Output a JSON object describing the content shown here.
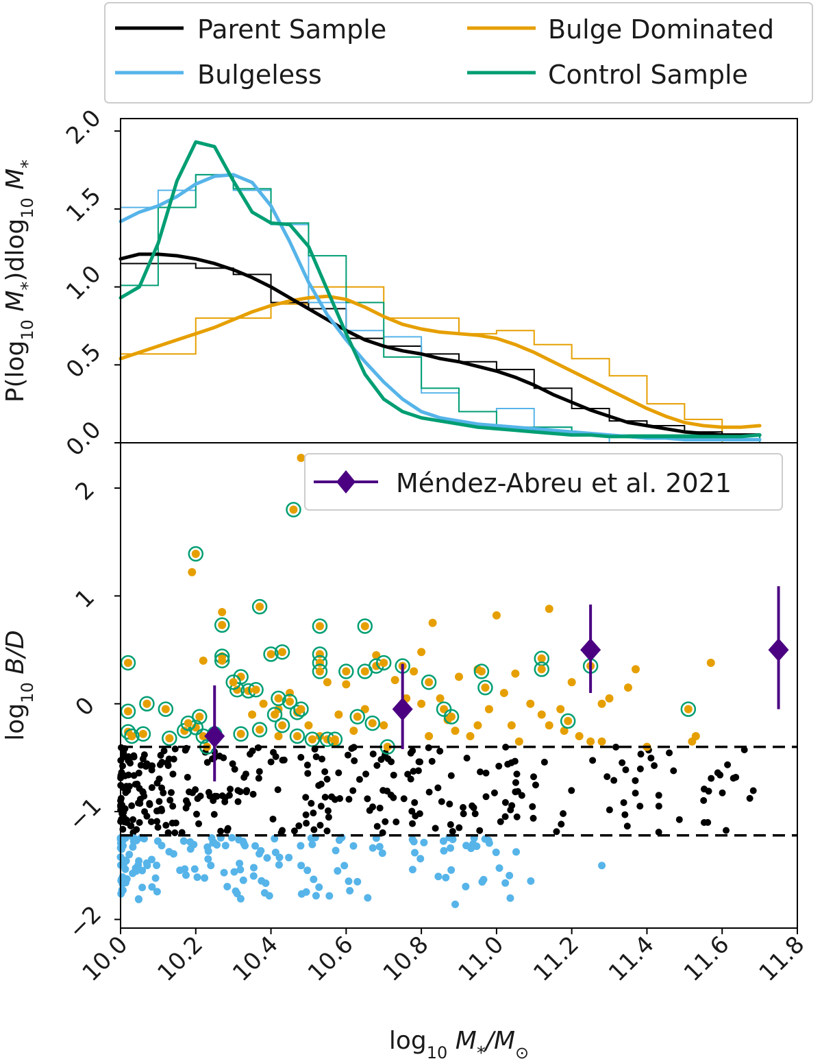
{
  "colors": {
    "parent": "#000000",
    "bulgeless": "#56b4e9",
    "bulge": "#e69f00",
    "control": "#009e73",
    "mendez": "#4b0082"
  },
  "chart_data": [
    {
      "type": "line",
      "panel": "top",
      "ylabel_parts": [
        "P(log",
        "10",
        " M",
        "*",
        ")dlog",
        "10",
        " M",
        "*"
      ],
      "xlim": [
        10.0,
        11.8
      ],
      "ylim": [
        0.0,
        2.08
      ],
      "yticks": [
        0.0,
        0.5,
        1.0,
        1.5,
        2.0
      ],
      "ytick_labels": [
        "0.0",
        "0.5",
        "1.0",
        "1.5",
        "2.0"
      ],
      "legend": {
        "position": "above",
        "entries": [
          "Parent Sample",
          "Bulge Dominated",
          "Bulgeless",
          "Control Sample"
        ]
      },
      "hist_edges": [
        10.0,
        10.1,
        10.2,
        10.3,
        10.4,
        10.5,
        10.6,
        10.7,
        10.8,
        10.9,
        11.0,
        11.1,
        11.2,
        11.3,
        11.4,
        11.5,
        11.6,
        11.7
      ],
      "series": [
        {
          "name": "Parent Sample",
          "color_key": "parent",
          "hist": [
            1.15,
            1.15,
            1.12,
            1.08,
            0.9,
            0.86,
            0.67,
            0.62,
            0.57,
            0.52,
            0.47,
            0.35,
            0.22,
            0.14,
            0.11,
            0.07,
            0.05
          ],
          "kde_x": [
            10.0,
            10.05,
            10.1,
            10.15,
            10.2,
            10.25,
            10.3,
            10.35,
            10.4,
            10.45,
            10.5,
            10.55,
            10.6,
            10.65,
            10.7,
            10.75,
            10.8,
            10.85,
            10.9,
            10.95,
            11.0,
            11.05,
            11.1,
            11.15,
            11.2,
            11.25,
            11.3,
            11.35,
            11.4,
            11.45,
            11.5,
            11.55,
            11.6,
            11.65,
            11.7
          ],
          "kde_y": [
            1.18,
            1.21,
            1.21,
            1.2,
            1.18,
            1.15,
            1.11,
            1.06,
            1.0,
            0.93,
            0.86,
            0.79,
            0.72,
            0.66,
            0.62,
            0.59,
            0.57,
            0.54,
            0.52,
            0.49,
            0.46,
            0.42,
            0.37,
            0.31,
            0.26,
            0.21,
            0.17,
            0.13,
            0.11,
            0.09,
            0.07,
            0.06,
            0.05,
            0.05,
            0.05
          ]
        },
        {
          "name": "Bulge Dominated",
          "color_key": "bulge",
          "hist": [
            0.57,
            0.57,
            0.8,
            0.8,
            0.89,
            1.0,
            1.0,
            0.8,
            0.8,
            0.7,
            0.72,
            0.63,
            0.54,
            0.43,
            0.25,
            0.15,
            0.0
          ],
          "kde_x": [
            10.0,
            10.05,
            10.1,
            10.15,
            10.2,
            10.25,
            10.3,
            10.35,
            10.4,
            10.45,
            10.5,
            10.55,
            10.6,
            10.65,
            10.7,
            10.75,
            10.8,
            10.85,
            10.9,
            10.95,
            11.0,
            11.05,
            11.1,
            11.15,
            11.2,
            11.25,
            11.3,
            11.35,
            11.4,
            11.45,
            11.5,
            11.55,
            11.6,
            11.65,
            11.7
          ],
          "kde_y": [
            0.54,
            0.58,
            0.62,
            0.66,
            0.7,
            0.74,
            0.79,
            0.84,
            0.88,
            0.91,
            0.93,
            0.94,
            0.92,
            0.87,
            0.81,
            0.76,
            0.73,
            0.71,
            0.7,
            0.69,
            0.67,
            0.63,
            0.58,
            0.52,
            0.46,
            0.4,
            0.34,
            0.28,
            0.22,
            0.17,
            0.13,
            0.11,
            0.1,
            0.1,
            0.11
          ]
        },
        {
          "name": "Bulgeless",
          "color_key": "bulgeless",
          "hist": [
            1.51,
            1.62,
            1.72,
            1.62,
            1.4,
            0.9,
            0.72,
            0.68,
            0.32,
            0.2,
            0.22,
            0.1,
            0.05,
            0.0,
            0.0,
            0.0,
            0.0
          ],
          "kde_x": [
            10.0,
            10.05,
            10.1,
            10.15,
            10.2,
            10.25,
            10.3,
            10.35,
            10.4,
            10.45,
            10.5,
            10.55,
            10.6,
            10.65,
            10.7,
            10.75,
            10.8,
            10.85,
            10.9,
            10.95,
            11.0,
            11.05,
            11.1,
            11.15,
            11.2,
            11.25,
            11.3,
            11.35,
            11.4,
            11.45,
            11.5,
            11.55,
            11.6,
            11.65,
            11.7
          ],
          "kde_y": [
            1.42,
            1.48,
            1.52,
            1.58,
            1.66,
            1.71,
            1.72,
            1.67,
            1.52,
            1.29,
            1.03,
            0.82,
            0.66,
            0.52,
            0.39,
            0.28,
            0.2,
            0.16,
            0.14,
            0.12,
            0.11,
            0.1,
            0.09,
            0.08,
            0.07,
            0.06,
            0.05,
            0.04,
            0.03,
            0.03,
            0.02,
            0.02,
            0.02,
            0.02,
            0.02
          ]
        },
        {
          "name": "Control Sample",
          "color_key": "control",
          "hist": [
            1.01,
            1.51,
            1.72,
            1.63,
            1.41,
            1.2,
            0.9,
            0.55,
            0.35,
            0.2,
            0.1,
            0.1,
            0.05,
            0.05,
            0.05,
            0.05,
            0.05
          ],
          "kde_x": [
            10.0,
            10.05,
            10.1,
            10.15,
            10.2,
            10.25,
            10.3,
            10.35,
            10.4,
            10.45,
            10.5,
            10.55,
            10.6,
            10.65,
            10.7,
            10.75,
            10.8,
            10.85,
            10.9,
            10.95,
            11.0,
            11.05,
            11.1,
            11.15,
            11.2,
            11.25,
            11.3,
            11.35,
            11.4,
            11.45,
            11.5,
            11.55,
            11.6,
            11.65,
            11.7
          ],
          "kde_y": [
            0.93,
            1.0,
            1.28,
            1.68,
            1.93,
            1.9,
            1.68,
            1.48,
            1.41,
            1.4,
            1.26,
            0.98,
            0.7,
            0.44,
            0.28,
            0.2,
            0.16,
            0.14,
            0.12,
            0.1,
            0.09,
            0.08,
            0.07,
            0.06,
            0.05,
            0.05,
            0.04,
            0.04,
            0.04,
            0.04,
            0.04,
            0.04,
            0.04,
            0.04,
            0.05
          ]
        }
      ]
    },
    {
      "type": "scatter",
      "panel": "bottom",
      "xlabel_parts": [
        "log",
        "10",
        " M",
        "*",
        "/M",
        "⊙"
      ],
      "ylabel_parts": [
        "log",
        "10",
        " B/D"
      ],
      "xlim": [
        10.0,
        11.8
      ],
      "ylim": [
        -2.08,
        2.42
      ],
      "xticks": [
        10.0,
        10.2,
        10.4,
        10.6,
        10.8,
        11.0,
        11.2,
        11.4,
        11.6,
        11.8
      ],
      "xtick_labels": [
        "10.0",
        "10.2",
        "10.4",
        "10.6",
        "10.8",
        "11.0",
        "11.2",
        "11.4",
        "11.6",
        "11.8"
      ],
      "yticks": [
        -2,
        -1,
        0,
        1,
        2
      ],
      "ytick_labels": [
        "−2",
        "−1",
        "0",
        "1",
        "2"
      ],
      "thresholds": [
        -0.4,
        -1.22
      ],
      "legend": {
        "position": "top-right",
        "entries": [
          "Méndez-Abreu et al. 2021"
        ]
      },
      "bulge_points": [
        [
          10.48,
          2.28
        ],
        [
          10.19,
          1.22
        ],
        [
          10.27,
          0.85
        ],
        [
          11.14,
          0.88
        ],
        [
          11.0,
          0.82
        ],
        [
          10.83,
          0.75
        ],
        [
          10.22,
          0.4
        ],
        [
          10.68,
          0.45
        ],
        [
          10.8,
          0.48
        ],
        [
          10.73,
          0.22
        ],
        [
          10.78,
          0.3
        ],
        [
          10.9,
          0.25
        ],
        [
          10.95,
          0.32
        ],
        [
          11.05,
          0.28
        ],
        [
          11.2,
          0.2
        ],
        [
          11.3,
          0.05
        ],
        [
          11.28,
          0.0
        ],
        [
          11.37,
          0.32
        ],
        [
          11.35,
          0.15
        ],
        [
          11.4,
          -0.4
        ],
        [
          11.57,
          0.38
        ],
        [
          11.53,
          -0.3
        ],
        [
          11.52,
          -0.35
        ],
        [
          10.55,
          0.2
        ],
        [
          10.6,
          0.18
        ],
        [
          10.58,
          -0.1
        ],
        [
          10.62,
          -0.25
        ],
        [
          10.65,
          -0.05
        ],
        [
          10.7,
          -0.2
        ],
        [
          10.76,
          0.05
        ],
        [
          10.8,
          0.0
        ],
        [
          10.82,
          -0.3
        ],
        [
          10.85,
          0.05
        ],
        [
          10.87,
          -0.15
        ],
        [
          10.89,
          -0.25
        ],
        [
          10.93,
          -0.3
        ],
        [
          10.95,
          -0.2
        ],
        [
          10.98,
          -0.05
        ],
        [
          11.02,
          0.1
        ],
        [
          11.04,
          -0.2
        ],
        [
          11.06,
          -0.35
        ],
        [
          11.09,
          0.0
        ],
        [
          11.12,
          -0.1
        ],
        [
          11.14,
          -0.2
        ],
        [
          11.17,
          -0.05
        ],
        [
          11.22,
          -0.3
        ],
        [
          11.25,
          -0.35
        ],
        [
          11.28,
          -0.35
        ],
        [
          11.18,
          -0.25
        ],
        [
          10.42,
          -0.05
        ],
        [
          10.45,
          0.1
        ],
        [
          10.38,
          0.0
        ],
        [
          10.5,
          -0.2
        ],
        [
          10.53,
          -0.3
        ],
        [
          10.57,
          -0.35
        ],
        [
          10.42,
          -0.3
        ],
        [
          10.35,
          -0.1
        ]
      ],
      "control_points": [
        [
          10.46,
          1.8
        ],
        [
          10.2,
          1.39
        ],
        [
          10.37,
          0.9
        ],
        [
          10.27,
          0.73
        ],
        [
          10.53,
          0.72
        ],
        [
          10.65,
          0.72
        ],
        [
          10.02,
          0.38
        ],
        [
          10.27,
          0.44
        ],
        [
          10.27,
          0.4
        ],
        [
          10.4,
          0.46
        ],
        [
          10.43,
          0.48
        ],
        [
          10.53,
          0.46
        ],
        [
          10.53,
          0.38
        ],
        [
          10.53,
          0.3
        ],
        [
          10.65,
          0.3
        ],
        [
          10.68,
          0.35
        ],
        [
          10.7,
          0.38
        ],
        [
          10.75,
          0.35
        ],
        [
          10.6,
          0.3
        ],
        [
          11.12,
          0.42
        ],
        [
          11.12,
          0.32
        ],
        [
          11.25,
          0.35
        ],
        [
          10.32,
          0.25
        ],
        [
          10.31,
          0.13
        ],
        [
          10.34,
          0.12
        ],
        [
          10.36,
          0.13
        ],
        [
          10.3,
          0.2
        ],
        [
          10.82,
          0.2
        ],
        [
          10.96,
          0.3
        ],
        [
          10.97,
          0.15
        ],
        [
          10.02,
          -0.07
        ],
        [
          10.07,
          0.0
        ],
        [
          10.12,
          -0.05
        ],
        [
          10.02,
          -0.26
        ],
        [
          10.03,
          -0.3
        ],
        [
          10.06,
          -0.28
        ],
        [
          10.13,
          -0.32
        ],
        [
          10.17,
          -0.25
        ],
        [
          10.2,
          -0.22
        ],
        [
          10.18,
          -0.18
        ],
        [
          10.22,
          -0.3
        ],
        [
          10.23,
          -0.4
        ],
        [
          10.21,
          -0.12
        ],
        [
          10.41,
          -0.1
        ],
        [
          10.43,
          -0.2
        ],
        [
          10.45,
          0.02
        ],
        [
          10.47,
          -0.08
        ],
        [
          10.48,
          -0.05
        ],
        [
          10.42,
          0.05
        ],
        [
          10.47,
          -0.3
        ],
        [
          10.51,
          -0.33
        ],
        [
          10.55,
          -0.33
        ],
        [
          10.57,
          -0.33
        ],
        [
          10.63,
          -0.12
        ],
        [
          10.67,
          -0.18
        ],
        [
          10.71,
          -0.4
        ],
        [
          10.86,
          -0.05
        ],
        [
          10.88,
          -0.12
        ],
        [
          11.19,
          -0.16
        ],
        [
          11.51,
          -0.05
        ],
        [
          10.37,
          -0.24
        ],
        [
          10.32,
          -0.28
        ],
        [
          10.25,
          -0.28
        ]
      ],
      "parent_n": 320,
      "bulgeless_n": 160,
      "mendez_points": [
        {
          "x": 10.25,
          "y": -0.3,
          "yerr_lo": 0.42,
          "yerr_hi": 0.47
        },
        {
          "x": 10.75,
          "y": -0.05,
          "yerr_lo": 0.37,
          "yerr_hi": 0.42
        },
        {
          "x": 11.25,
          "y": 0.5,
          "yerr_lo": 0.4,
          "yerr_hi": 0.42
        },
        {
          "x": 11.75,
          "y": 0.5,
          "yerr_lo": 0.55,
          "yerr_hi": 0.59
        }
      ]
    }
  ]
}
